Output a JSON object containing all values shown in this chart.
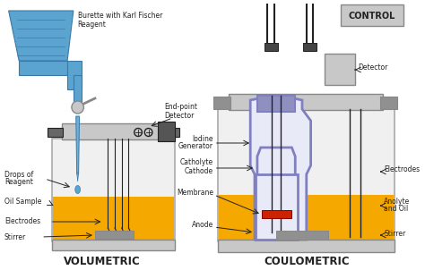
{
  "bg_color": "#ffffff",
  "title_vol": "VOLUMETRIC",
  "title_coul": "COULOMETRIC",
  "control_label": "CONTROL",
  "yellow_color": "#F5A800",
  "blue_color": "#5BA4CF",
  "blue_dark": "#3a7aaa",
  "blue_tube": "#6ab0d8",
  "purple_color": "#8080c0",
  "purple_light": "#a0a0e0",
  "gray_dark": "#888888",
  "gray_mid": "#aaaaaa",
  "silver_color": "#c8c8c8",
  "silver_dark": "#909090",
  "red_color": "#cc2200",
  "dark_color": "#222222",
  "white_color": "#f0f0f0",
  "black_cap": "#444444"
}
